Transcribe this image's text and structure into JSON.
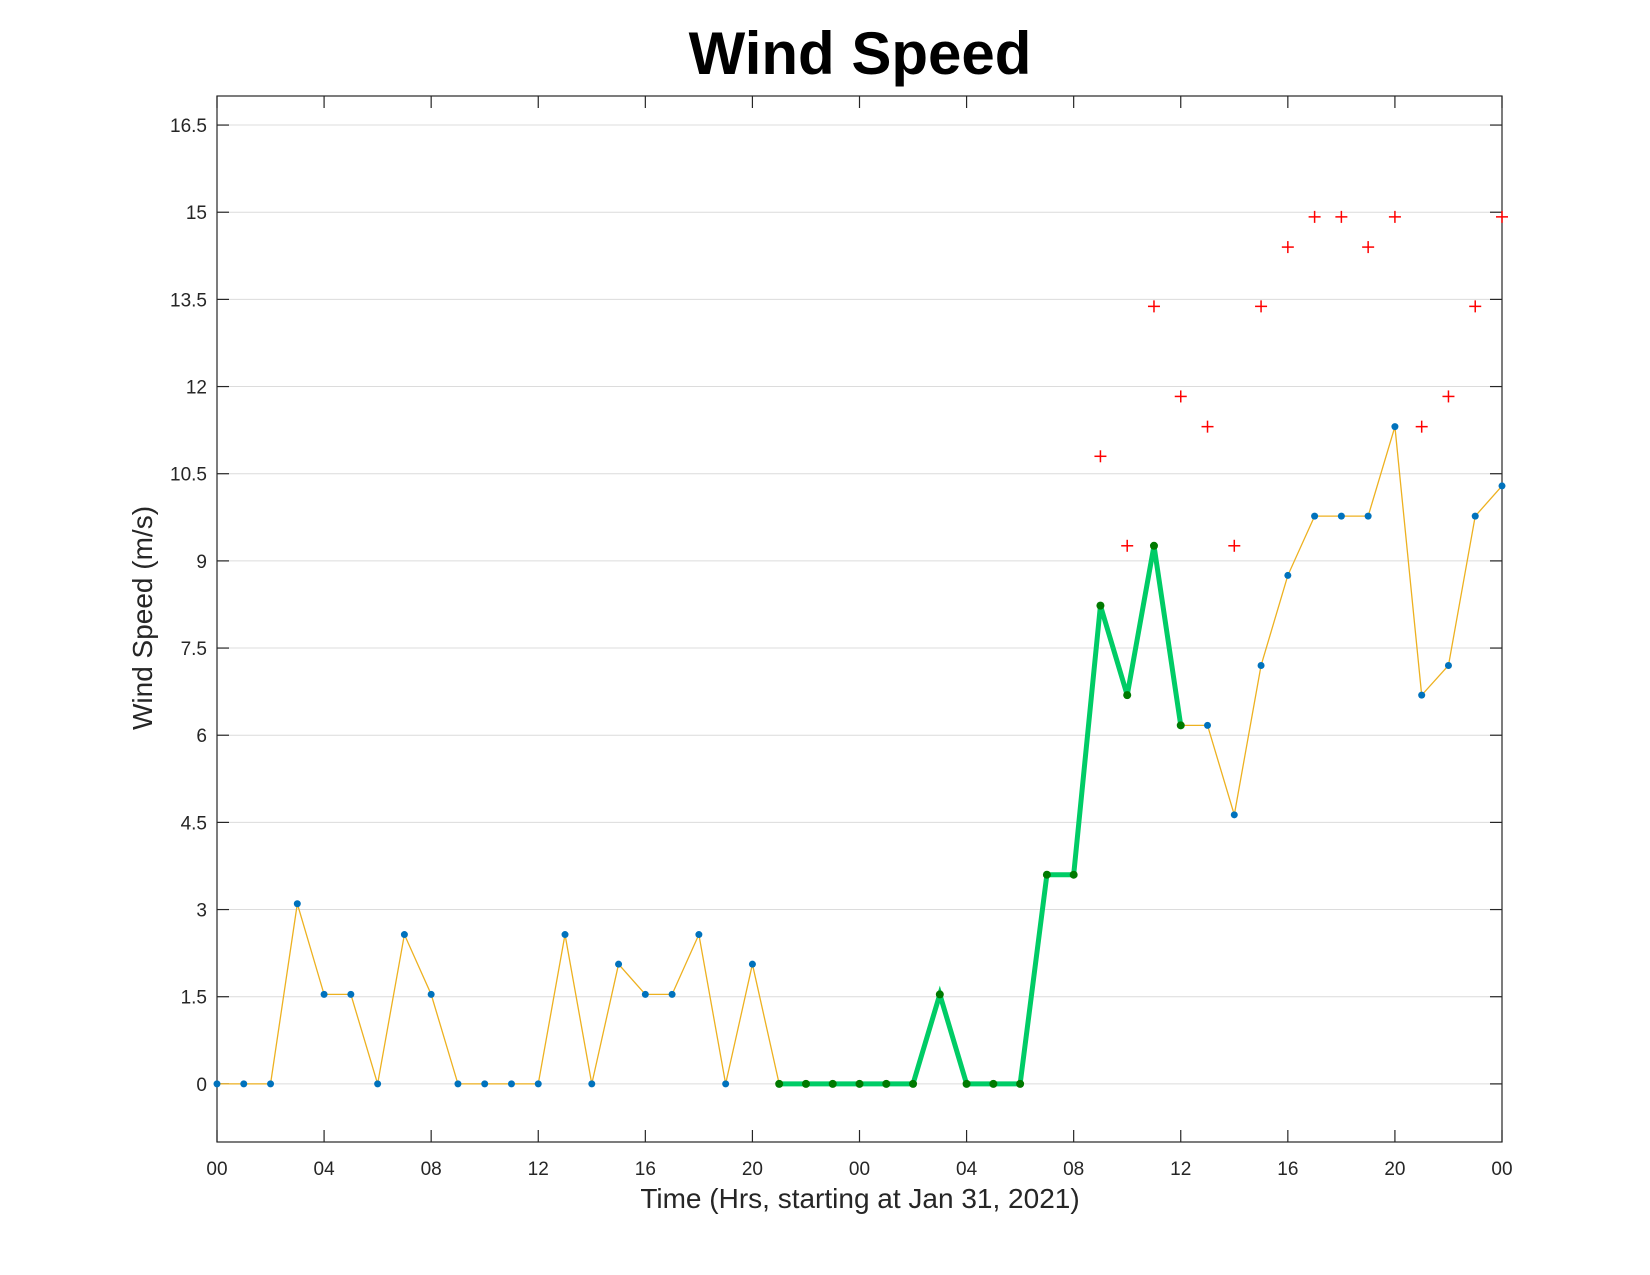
{
  "chart_data": {
    "type": "line",
    "title": "Wind Speed",
    "xlabel": "Time (Hrs, starting at Jan 31, 2021)",
    "ylabel": "Wind Speed (m/s)",
    "xlim": [
      0,
      48
    ],
    "ylim": [
      -1,
      17
    ],
    "grid": "horizontal",
    "x_ticks": [
      0,
      4,
      8,
      12,
      16,
      20,
      24,
      28,
      32,
      36,
      40,
      44,
      48
    ],
    "x_tick_labels": [
      "00",
      "04",
      "08",
      "12",
      "16",
      "20",
      "00",
      "04",
      "08",
      "12",
      "16",
      "20",
      "00"
    ],
    "y_ticks": [
      0,
      1.5,
      3,
      4.5,
      6,
      7.5,
      9,
      10.5,
      12,
      13.5,
      15,
      16.5
    ],
    "y_tick_labels": [
      "0",
      "1.5",
      "3",
      "4.5",
      "6",
      "7.5",
      "9",
      "10.5",
      "12",
      "13.5",
      "15",
      "16.5"
    ],
    "series": [
      {
        "style": "thin-line-with-markers",
        "line_color": "#EDB120",
        "marker_color": "#0072BD",
        "x": [
          0,
          1,
          2,
          3,
          4,
          5,
          6,
          7,
          8,
          9,
          10,
          11,
          12,
          13,
          14,
          15,
          16,
          17,
          18,
          19,
          20,
          21,
          22,
          23,
          24,
          25,
          26,
          27,
          28,
          29,
          30,
          31,
          32,
          33,
          34,
          35,
          36,
          37,
          38,
          39,
          40,
          41,
          42,
          43,
          44,
          45,
          46,
          47,
          48
        ],
        "values": [
          0,
          0,
          0,
          3.1,
          1.54,
          1.54,
          0,
          2.57,
          1.54,
          0,
          0,
          0,
          0,
          2.57,
          0,
          2.06,
          1.54,
          1.54,
          2.57,
          0,
          2.06,
          0,
          0,
          0,
          0,
          0,
          0,
          1.54,
          0,
          0,
          0,
          3.6,
          3.6,
          8.23,
          6.69,
          9.26,
          6.17,
          6.17,
          4.63,
          7.2,
          8.75,
          9.77,
          9.77,
          9.77,
          11.31,
          6.69,
          7.2,
          9.77,
          10.29
        ]
      },
      {
        "style": "thick-line-with-markers",
        "line_color": "#00CC66",
        "marker_color": "#007A00",
        "x": [
          21,
          22,
          23,
          24,
          25,
          26,
          27,
          28,
          29,
          30,
          31,
          32,
          33,
          34,
          35,
          36
        ],
        "values": [
          0,
          0,
          0,
          0,
          0,
          0,
          1.54,
          0,
          0,
          0,
          3.6,
          3.6,
          8.23,
          6.69,
          9.26,
          6.17
        ]
      },
      {
        "style": "plus-markers",
        "marker_color": "#FF0000",
        "x": [
          33,
          34,
          35,
          36,
          37,
          38,
          39,
          40,
          41,
          42,
          43,
          44,
          45,
          46,
          47,
          48
        ],
        "values": [
          10.8,
          9.26,
          13.38,
          11.83,
          11.31,
          9.26,
          13.38,
          14.4,
          14.92,
          14.92,
          14.4,
          14.92,
          11.31,
          11.83,
          13.38,
          14.92
        ]
      }
    ]
  }
}
